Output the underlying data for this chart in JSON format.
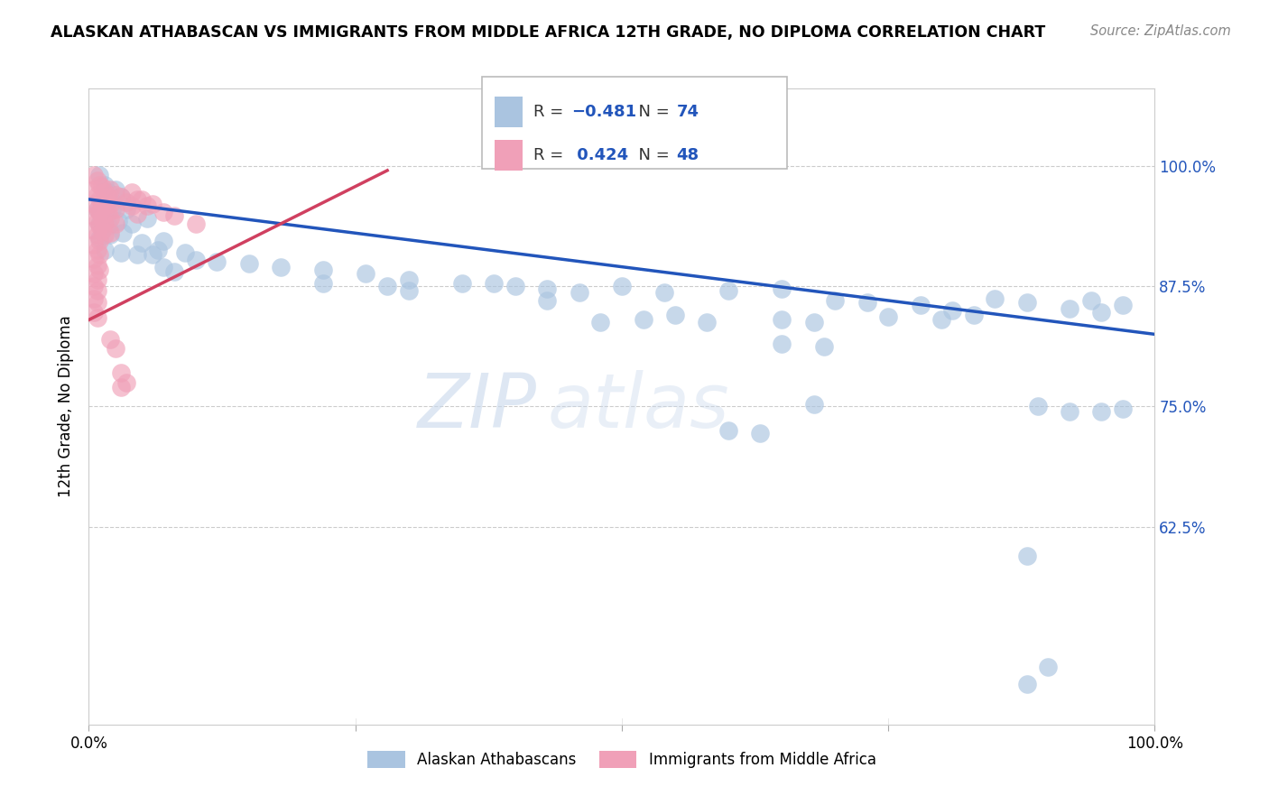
{
  "title": "ALASKAN ATHABASCAN VS IMMIGRANTS FROM MIDDLE AFRICA 12TH GRADE, NO DIPLOMA CORRELATION CHART",
  "source": "Source: ZipAtlas.com",
  "ylabel": "12th Grade, No Diploma",
  "ytick_labels": [
    "62.5%",
    "75.0%",
    "87.5%",
    "100.0%"
  ],
  "ytick_values": [
    0.625,
    0.75,
    0.875,
    1.0
  ],
  "legend_label_blue": "Alaskan Athabascans",
  "legend_label_pink": "Immigrants from Middle Africa",
  "blue_color": "#aac4e0",
  "blue_line_color": "#2255bb",
  "pink_color": "#f0a0b8",
  "pink_line_color": "#d04060",
  "xlim": [
    0.0,
    1.0
  ],
  "ylim": [
    0.42,
    1.08
  ],
  "blue_line": [
    [
      0.0,
      0.965
    ],
    [
      1.0,
      0.825
    ]
  ],
  "pink_line": [
    [
      0.0,
      0.84
    ],
    [
      0.28,
      0.995
    ]
  ],
  "blue_dots": [
    [
      0.01,
      0.99
    ],
    [
      0.015,
      0.98
    ],
    [
      0.018,
      0.972
    ],
    [
      0.012,
      0.96
    ],
    [
      0.02,
      0.965
    ],
    [
      0.025,
      0.975
    ],
    [
      0.03,
      0.968
    ],
    [
      0.008,
      0.955
    ],
    [
      0.014,
      0.95
    ],
    [
      0.022,
      0.955
    ],
    [
      0.035,
      0.955
    ],
    [
      0.01,
      0.94
    ],
    [
      0.018,
      0.938
    ],
    [
      0.028,
      0.942
    ],
    [
      0.04,
      0.94
    ],
    [
      0.055,
      0.945
    ],
    [
      0.01,
      0.925
    ],
    [
      0.02,
      0.928
    ],
    [
      0.032,
      0.93
    ],
    [
      0.05,
      0.92
    ],
    [
      0.07,
      0.922
    ],
    [
      0.015,
      0.912
    ],
    [
      0.03,
      0.91
    ],
    [
      0.045,
      0.908
    ],
    [
      0.065,
      0.912
    ],
    [
      0.09,
      0.91
    ],
    [
      0.12,
      0.9
    ],
    [
      0.15,
      0.898
    ],
    [
      0.18,
      0.895
    ],
    [
      0.22,
      0.892
    ],
    [
      0.26,
      0.888
    ],
    [
      0.3,
      0.882
    ],
    [
      0.35,
      0.878
    ],
    [
      0.4,
      0.875
    ],
    [
      0.22,
      0.878
    ],
    [
      0.28,
      0.875
    ],
    [
      0.38,
      0.878
    ],
    [
      0.43,
      0.872
    ],
    [
      0.46,
      0.868
    ],
    [
      0.5,
      0.875
    ],
    [
      0.54,
      0.868
    ],
    [
      0.6,
      0.87
    ],
    [
      0.65,
      0.872
    ],
    [
      0.7,
      0.86
    ],
    [
      0.73,
      0.858
    ],
    [
      0.78,
      0.855
    ],
    [
      0.81,
      0.85
    ],
    [
      0.85,
      0.862
    ],
    [
      0.88,
      0.858
    ],
    [
      0.92,
      0.852
    ],
    [
      0.94,
      0.86
    ],
    [
      0.95,
      0.848
    ],
    [
      0.97,
      0.855
    ],
    [
      0.65,
      0.84
    ],
    [
      0.68,
      0.838
    ],
    [
      0.75,
      0.843
    ],
    [
      0.8,
      0.84
    ],
    [
      0.83,
      0.845
    ],
    [
      0.65,
      0.815
    ],
    [
      0.69,
      0.812
    ],
    [
      0.52,
      0.84
    ],
    [
      0.48,
      0.838
    ],
    [
      0.55,
      0.845
    ],
    [
      0.58,
      0.838
    ],
    [
      0.43,
      0.86
    ],
    [
      0.3,
      0.87
    ],
    [
      0.1,
      0.902
    ],
    [
      0.06,
      0.908
    ],
    [
      0.07,
      0.895
    ],
    [
      0.08,
      0.89
    ],
    [
      0.6,
      0.725
    ],
    [
      0.63,
      0.722
    ],
    [
      0.68,
      0.752
    ],
    [
      0.89,
      0.75
    ],
    [
      0.92,
      0.745
    ],
    [
      0.95,
      0.745
    ],
    [
      0.97,
      0.748
    ],
    [
      0.88,
      0.595
    ],
    [
      0.9,
      0.48
    ],
    [
      0.88,
      0.462
    ]
  ],
  "pink_dots": [
    [
      0.005,
      0.99
    ],
    [
      0.008,
      0.985
    ],
    [
      0.01,
      0.98
    ],
    [
      0.005,
      0.975
    ],
    [
      0.008,
      0.97
    ],
    [
      0.01,
      0.965
    ],
    [
      0.005,
      0.96
    ],
    [
      0.008,
      0.955
    ],
    [
      0.01,
      0.952
    ],
    [
      0.005,
      0.948
    ],
    [
      0.008,
      0.942
    ],
    [
      0.01,
      0.938
    ],
    [
      0.005,
      0.933
    ],
    [
      0.008,
      0.928
    ],
    [
      0.01,
      0.922
    ],
    [
      0.005,
      0.918
    ],
    [
      0.008,
      0.912
    ],
    [
      0.01,
      0.908
    ],
    [
      0.005,
      0.903
    ],
    [
      0.008,
      0.897
    ],
    [
      0.01,
      0.892
    ],
    [
      0.005,
      0.888
    ],
    [
      0.008,
      0.882
    ],
    [
      0.005,
      0.875
    ],
    [
      0.008,
      0.87
    ],
    [
      0.005,
      0.862
    ],
    [
      0.008,
      0.858
    ],
    [
      0.005,
      0.848
    ],
    [
      0.008,
      0.842
    ],
    [
      0.012,
      0.978
    ],
    [
      0.015,
      0.972
    ],
    [
      0.018,
      0.968
    ],
    [
      0.012,
      0.962
    ],
    [
      0.015,
      0.958
    ],
    [
      0.018,
      0.952
    ],
    [
      0.012,
      0.945
    ],
    [
      0.015,
      0.94
    ],
    [
      0.012,
      0.932
    ],
    [
      0.015,
      0.928
    ],
    [
      0.02,
      0.975
    ],
    [
      0.025,
      0.97
    ],
    [
      0.02,
      0.96
    ],
    [
      0.025,
      0.955
    ],
    [
      0.02,
      0.945
    ],
    [
      0.025,
      0.94
    ],
    [
      0.02,
      0.93
    ],
    [
      0.03,
      0.968
    ],
    [
      0.035,
      0.962
    ],
    [
      0.04,
      0.972
    ],
    [
      0.045,
      0.965
    ],
    [
      0.04,
      0.958
    ],
    [
      0.045,
      0.95
    ],
    [
      0.05,
      0.965
    ],
    [
      0.055,
      0.958
    ],
    [
      0.06,
      0.96
    ],
    [
      0.07,
      0.952
    ],
    [
      0.08,
      0.948
    ],
    [
      0.1,
      0.94
    ],
    [
      0.03,
      0.785
    ],
    [
      0.035,
      0.775
    ],
    [
      0.03,
      0.77
    ],
    [
      0.025,
      0.81
    ],
    [
      0.02,
      0.82
    ]
  ]
}
